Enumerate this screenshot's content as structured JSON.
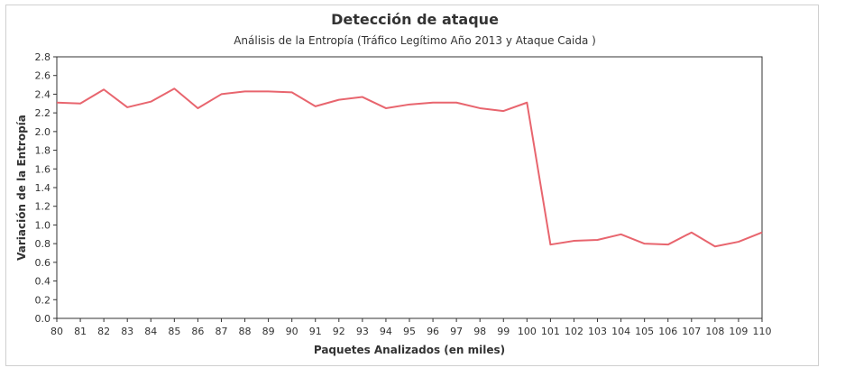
{
  "chart_data": {
    "type": "line",
    "title": "Detección de ataque",
    "subtitle": "Análisis de la Entropía (Tráfico Legítimo Año 2013 y Ataque Caida )",
    "xlabel": "Paquetes Analizados (en miles)",
    "ylabel": "Variación de la Entropía",
    "x": [
      80,
      81,
      82,
      83,
      84,
      85,
      86,
      87,
      88,
      89,
      90,
      91,
      92,
      93,
      94,
      95,
      96,
      97,
      98,
      99,
      100,
      101,
      102,
      103,
      104,
      105,
      106,
      107,
      108,
      109,
      110
    ],
    "series": [
      {
        "name": "",
        "color": "#e8656e",
        "values": [
          2.31,
          2.3,
          2.45,
          2.26,
          2.32,
          2.46,
          2.25,
          2.4,
          2.43,
          2.43,
          2.42,
          2.27,
          2.34,
          2.37,
          2.25,
          2.29,
          2.31,
          2.31,
          2.25,
          2.22,
          2.31,
          0.79,
          0.83,
          0.84,
          0.9,
          0.8,
          0.79,
          0.92,
          0.77,
          0.82,
          0.92
        ]
      }
    ],
    "xlim": [
      80,
      110
    ],
    "ylim": [
      0,
      2.8
    ],
    "yticks": [
      "0.0",
      "0.2",
      "0.4",
      "0.6",
      "0.8",
      "1.0",
      "1.2",
      "1.4",
      "1.6",
      "1.8",
      "2.0",
      "2.2",
      "2.4",
      "2.6",
      "2.8"
    ],
    "xticks": [
      "80",
      "81",
      "82",
      "83",
      "84",
      "85",
      "86",
      "87",
      "88",
      "89",
      "90",
      "91",
      "92",
      "93",
      "94",
      "95",
      "96",
      "97",
      "98",
      "99",
      "100",
      "101",
      "102",
      "103",
      "104",
      "105",
      "106",
      "107",
      "108",
      "109",
      "110"
    ],
    "grid": false,
    "legend": "none"
  }
}
